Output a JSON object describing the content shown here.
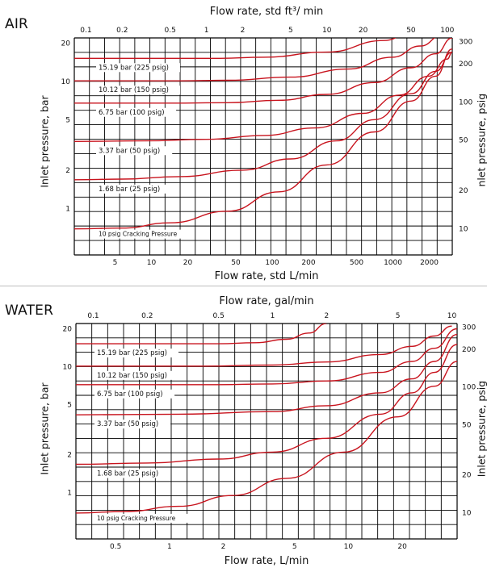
{
  "colors": {
    "curve": "#c8141e",
    "grid": "#000000",
    "panel_rule": "#bdbdbd"
  },
  "chart_data": [
    {
      "type": "line",
      "panel_label": "AIR",
      "title": "",
      "x_top_label": "Flow rate, std ft³/ min",
      "x_bottom_label": "Flow rate, std L/min",
      "y_left_label": "Inlet pressure, bar",
      "y_right_label": "Inlet pressure, psig",
      "x_scale": "log",
      "y_scale": "log",
      "grid": true,
      "xlim_top": [
        0.08,
        110
      ],
      "xlim_bottom": [
        2.3,
        3100
      ],
      "ylim_left": [
        0.43,
        22
      ],
      "ylim_right": [
        6.2,
        320
      ],
      "x_top_ticks": [
        0.1,
        0.2,
        0.5,
        1,
        2,
        5,
        10,
        20,
        50,
        100
      ],
      "x_bottom_ticks": [
        5,
        10,
        20,
        50,
        100,
        200,
        500,
        1000,
        2000
      ],
      "y_left_ticks": [
        1,
        2,
        5,
        10,
        20
      ],
      "y_right_ticks": [
        10,
        20,
        50,
        100,
        200,
        300
      ],
      "annotations": [
        "15.19 bar (225 psig)",
        "10.12 bar (150 psig)",
        "6.75 bar (100 psig)",
        "3.37 bar (50 psig)",
        "1.68 bar (25 psig)",
        "10 psig Cracking Pressure"
      ],
      "series": [
        {
          "name": "15.19 bar (225 psig)",
          "x_ft3min": [
            0.08,
            1.3,
            3,
            10,
            30,
            55,
            75
          ],
          "y_bar": [
            15.2,
            15.2,
            15.5,
            17,
            21,
            26,
            30
          ]
        },
        {
          "name": "10.12 bar (150 psig)",
          "x_ft3min": [
            0.08,
            0.6,
            1.5,
            5,
            15,
            35,
            60,
            90,
            110
          ],
          "y_bar": [
            10.1,
            10.1,
            10.2,
            10.8,
            12.5,
            15.5,
            19,
            23,
            26
          ]
        },
        {
          "name": "6.75 bar (100 psig)",
          "x_ft3min": [
            0.08,
            0.5,
            1.5,
            4,
            10,
            25,
            50,
            80,
            110
          ],
          "y_bar": [
            6.75,
            6.75,
            6.8,
            7.1,
            7.9,
            9.8,
            12.8,
            16.5,
            22
          ]
        },
        {
          "name": "3.37 bar (50 psig)",
          "x_ft3min": [
            0.08,
            0.3,
            1,
            3,
            8,
            20,
            40,
            70,
            100,
            110
          ],
          "y_bar": [
            3.37,
            3.4,
            3.5,
            3.75,
            4.3,
            5.6,
            7.8,
            11,
            15,
            17
          ]
        },
        {
          "name": "1.68 bar (25 psig)",
          "x_ft3min": [
            0.08,
            0.2,
            0.6,
            2,
            5,
            12,
            25,
            50,
            80,
            110
          ],
          "y_bar": [
            1.68,
            1.7,
            1.78,
            2.0,
            2.45,
            3.4,
            5,
            8,
            12,
            17
          ]
        },
        {
          "name": "10 psig Cracking Pressure",
          "x_ft3min": [
            0.08,
            0.2,
            0.5,
            1.5,
            4,
            10,
            25,
            50,
            80,
            110
          ],
          "y_bar": [
            0.69,
            0.7,
            0.77,
            0.95,
            1.35,
            2.2,
            4,
            7,
            11,
            18
          ]
        }
      ]
    },
    {
      "type": "line",
      "panel_label": "WATER",
      "title": "",
      "x_top_label": "Flow rate, gal/min",
      "x_bottom_label": "Flow rate, L/min",
      "y_left_label": "Inlet pressure, bar",
      "y_right_label": "Inlet pressure, psig",
      "x_scale": "log",
      "y_scale": "log",
      "grid": true,
      "xlim_top": [
        0.08,
        10.7
      ],
      "xlim_bottom": [
        0.3,
        40.5
      ],
      "ylim_left": [
        0.43,
        22
      ],
      "ylim_right": [
        6.2,
        320
      ],
      "x_top_ticks": [
        0.1,
        0.2,
        0.5,
        1,
        2,
        5,
        10
      ],
      "x_bottom_ticks": [
        0.5,
        1,
        2,
        5,
        10,
        20
      ],
      "y_left_ticks": [
        1,
        2,
        5,
        10,
        20
      ],
      "y_right_ticks": [
        10,
        20,
        50,
        100,
        200,
        300
      ],
      "annotations": [
        "15.19 bar (225 psig)",
        "10.12 bar (150 psig)",
        "6.75 bar (100 psig)",
        "3.37 bar (50 psig)",
        "1.68 bar (25 psig)",
        "10 psig Cracking Pressure"
      ],
      "series": [
        {
          "name": "15.19 bar (225 psig)",
          "x_galmin": [
            0.08,
            0.5,
            0.8,
            1.2,
            1.6,
            2.0
          ],
          "y_bar": [
            15.2,
            15.2,
            15.5,
            16.5,
            18.5,
            22
          ]
        },
        {
          "name": "10.12 bar (150 psig)",
          "x_galmin": [
            0.08,
            0.4,
            1,
            2,
            4,
            6,
            8,
            10
          ],
          "y_bar": [
            10.1,
            10.1,
            10.3,
            10.9,
            12.5,
            14.5,
            17.5,
            21
          ]
        },
        {
          "name": "6.75 bar (100 psig)",
          "x_galmin": [
            0.08,
            0.5,
            1,
            2,
            4,
            6,
            8,
            10.7
          ],
          "y_bar": [
            7.2,
            7.2,
            7.3,
            7.7,
            9,
            11,
            14,
            20
          ]
        },
        {
          "name": "3.37 bar (50 psig)",
          "x_galmin": [
            0.08,
            0.3,
            1,
            2,
            4,
            6,
            8,
            10.7
          ],
          "y_bar": [
            4.15,
            4.2,
            4.4,
            4.9,
            6.2,
            8,
            11,
            18
          ]
        },
        {
          "name": "1.68 bar (25 psig)",
          "x_galmin": [
            0.08,
            0.2,
            0.5,
            1,
            2,
            4,
            6,
            8,
            10.7
          ],
          "y_bar": [
            1.68,
            1.72,
            1.85,
            2.1,
            2.7,
            4.2,
            6.2,
            9,
            15
          ]
        },
        {
          "name": "10 psig Cracking Pressure",
          "x_galmin": [
            0.08,
            0.15,
            0.3,
            0.6,
            1.2,
            2.5,
            5,
            8,
            10.7
          ],
          "y_bar": [
            0.69,
            0.71,
            0.78,
            0.95,
            1.3,
            2.1,
            4,
            7,
            11
          ]
        }
      ]
    }
  ]
}
